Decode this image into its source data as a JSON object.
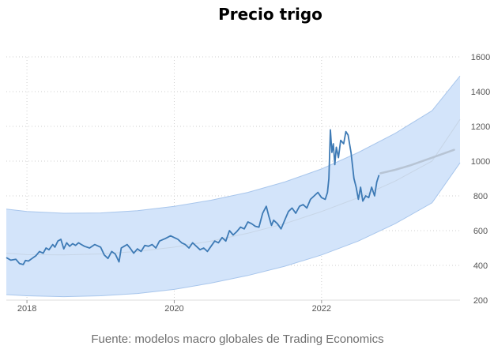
{
  "chart_data": {
    "type": "line",
    "title": "Precio trigo",
    "source": "Fuente: modelos macro globales de Trading Economics",
    "xlabel": "",
    "ylabel": "",
    "xlim": [
      2017.72,
      2023.88
    ],
    "ylim": [
      200,
      1600
    ],
    "x_ticks": [
      2018,
      2020,
      2022
    ],
    "y_ticks": [
      200,
      400,
      600,
      800,
      1000,
      1200,
      1400,
      1600
    ],
    "y_axis_side": "right",
    "grid": "dotted",
    "colors": {
      "price": "#3d7ab5",
      "forecast": "#b7c4d4",
      "band_fill": "#d3e4fa",
      "band_edge": "#a8c6ec",
      "trend": "#c7d5e6"
    },
    "series": [
      {
        "role": "price",
        "x": [
          2017.72,
          2017.78,
          2017.85,
          2017.9,
          2017.95,
          2017.98,
          2018.02,
          2018.07,
          2018.12,
          2018.17,
          2018.22,
          2018.26,
          2018.3,
          2018.35,
          2018.38,
          2018.42,
          2018.46,
          2018.5,
          2018.54,
          2018.58,
          2018.62,
          2018.66,
          2018.7,
          2018.74,
          2018.78,
          2018.85,
          2018.92,
          2019.0,
          2019.05,
          2019.1,
          2019.15,
          2019.2,
          2019.25,
          2019.28,
          2019.32,
          2019.36,
          2019.4,
          2019.45,
          2019.5,
          2019.55,
          2019.6,
          2019.65,
          2019.7,
          2019.75,
          2019.8,
          2019.88,
          2019.95,
          2020.0,
          2020.05,
          2020.1,
          2020.15,
          2020.2,
          2020.25,
          2020.3,
          2020.35,
          2020.4,
          2020.45,
          2020.5,
          2020.55,
          2020.6,
          2020.65,
          2020.7,
          2020.75,
          2020.8,
          2020.85,
          2020.9,
          2020.95,
          2021.0,
          2021.05,
          2021.1,
          2021.15,
          2021.2,
          2021.25,
          2021.28,
          2021.32,
          2021.35,
          2021.4,
          2021.45,
          2021.5,
          2021.55,
          2021.6,
          2021.65,
          2021.7,
          2021.75,
          2021.8,
          2021.85,
          2021.9,
          2021.95,
          2022.0,
          2022.05,
          2022.08,
          2022.1,
          2022.12,
          2022.14,
          2022.16,
          2022.18,
          2022.2,
          2022.23,
          2022.26,
          2022.3,
          2022.33,
          2022.36,
          2022.4,
          2022.44,
          2022.47,
          2022.5,
          2022.53,
          2022.56,
          2022.6,
          2022.64,
          2022.68,
          2022.72,
          2022.75,
          2022.78
        ],
        "y": [
          445,
          430,
          435,
          410,
          405,
          428,
          425,
          440,
          455,
          480,
          470,
          500,
          490,
          520,
          505,
          540,
          550,
          495,
          530,
          510,
          525,
          515,
          530,
          520,
          510,
          500,
          520,
          505,
          460,
          440,
          480,
          465,
          420,
          500,
          510,
          520,
          500,
          470,
          495,
          480,
          515,
          510,
          520,
          500,
          540,
          555,
          570,
          560,
          550,
          530,
          520,
          500,
          530,
          510,
          490,
          500,
          480,
          510,
          540,
          530,
          560,
          540,
          600,
          575,
          595,
          620,
          610,
          650,
          640,
          625,
          620,
          700,
          740,
          690,
          630,
          660,
          640,
          610,
          660,
          710,
          730,
          700,
          740,
          750,
          730,
          780,
          800,
          820,
          790,
          780,
          820,
          900,
          1180,
          1050,
          1100,
          980,
          1080,
          1020,
          1120,
          1100,
          1170,
          1150,
          1050,
          900,
          850,
          780,
          850,
          770,
          800,
          790,
          850,
          800,
          880,
          920
        ]
      },
      {
        "role": "forecast",
        "x": [
          2022.8,
          2023.0,
          2023.2,
          2023.4,
          2023.6,
          2023.8
        ],
        "y": [
          930,
          950,
          975,
          1005,
          1035,
          1065
        ]
      },
      {
        "role": "band",
        "x": [
          2017.72,
          2018.0,
          2018.5,
          2019.0,
          2019.5,
          2020.0,
          2020.5,
          2021.0,
          2021.5,
          2022.0,
          2022.5,
          2023.0,
          2023.5,
          2023.88
        ],
        "upper": [
          724,
          710,
          700,
          702,
          715,
          740,
          775,
          820,
          880,
          955,
          1050,
          1160,
          1290,
          1490
        ],
        "lower": [
          232,
          225,
          220,
          225,
          238,
          262,
          298,
          342,
          395,
          460,
          540,
          640,
          760,
          990
        ]
      },
      {
        "role": "trend",
        "x": [
          2017.72,
          2018.0,
          2018.5,
          2019.0,
          2019.5,
          2020.0,
          2020.5,
          2021.0,
          2021.5,
          2022.0,
          2022.5,
          2023.0,
          2023.5,
          2023.88
        ],
        "y": [
          470,
          462,
          460,
          466,
          480,
          505,
          540,
          585,
          640,
          710,
          790,
          885,
          1000,
          1240
        ]
      }
    ]
  }
}
